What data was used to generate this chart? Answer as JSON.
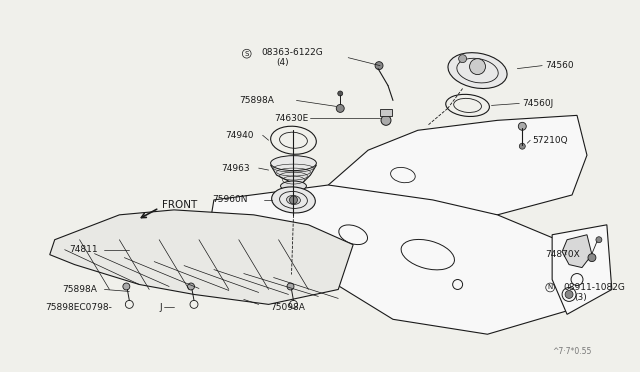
{
  "bg_color": "#f0f0eb",
  "line_color": "#1a1a1a",
  "lw": 0.8,
  "watermark": "^7·7*0.55",
  "labels": {
    "08363_label": "08363-6122G",
    "08363_sub": "(4)",
    "75898A_top": "75898A",
    "74940": "74940",
    "74963": "74963",
    "75960N": "75960N",
    "74560": "74560",
    "74560J": "74560J",
    "74630E": "74630E",
    "57210Q": "57210Q",
    "74870X": "74870X",
    "08911_label": "08911-1082G",
    "08911_sub": "(3)",
    "74811": "74811",
    "75898A_bot": "75898A",
    "75898EC": "75898EC0798-",
    "J_label": "J",
    "75098A": "75098A",
    "FRONT": "FRONT"
  }
}
